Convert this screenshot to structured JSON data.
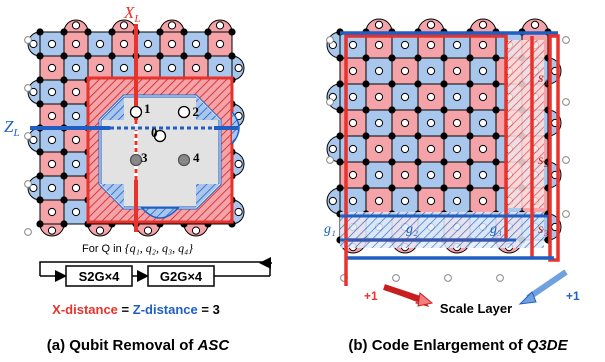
{
  "left_panel": {
    "axis_x": "X",
    "axis_x_sub": "L",
    "axis_z": "Z",
    "axis_z_sub": "L",
    "qubit_labels": [
      "1",
      "2",
      "0",
      "3",
      "4"
    ],
    "for_q_prefix": "For Q in",
    "for_q_set": "{q₁, q₂, q₃, q₄}",
    "box_s2g": "S2G×4",
    "box_g2g": "G2G×4",
    "distance_x": "X-distance",
    "distance_eq1": " = ",
    "distance_z": "Z-distance",
    "distance_eq2": " = 3",
    "caption": "(a) Qubit Removal of ",
    "caption_em": "ASC"
  },
  "right_panel": {
    "s_labels": [
      "s₁",
      "s₂",
      "s₃"
    ],
    "g_labels": [
      "g₁",
      "g₂",
      "g₃"
    ],
    "plus_left": "+1",
    "plus_right": "+1",
    "scale_layer": "Scale Layer",
    "caption": "(b) Code Enlargement of ",
    "caption_em": "Q3DE"
  },
  "colors": {
    "red_tile": "#f4a3a8",
    "blue_tile": "#a9c6ec",
    "red_line": "#e8322c",
    "blue_line": "#1f5fc4",
    "gray_fill": "#dcdcdc"
  }
}
